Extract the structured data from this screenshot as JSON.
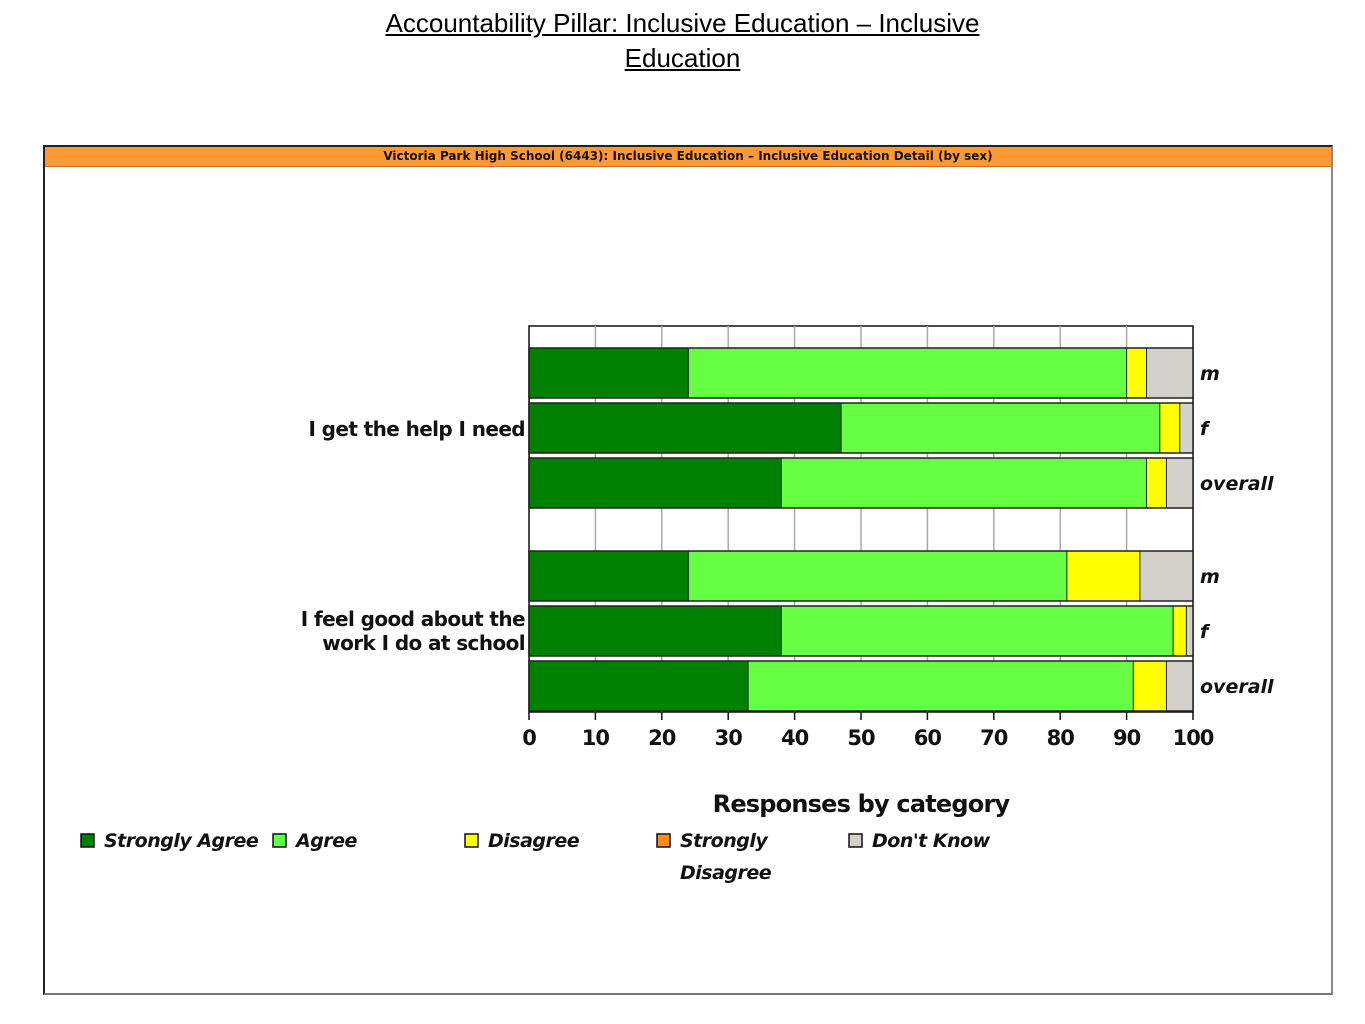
{
  "page": {
    "title_line1": "Accountability Pillar:  Inclusive Education – Inclusive",
    "title_line2": "Education"
  },
  "chart_data": {
    "type": "bar",
    "orientation": "horizontal",
    "stacked": true,
    "title": "Victoria Park High School (6443): Inclusive Education – Inclusive Education Detail (by sex)",
    "xlabel": "Responses by category",
    "xlim": [
      0,
      100
    ],
    "xticks": [
      0,
      10,
      20,
      30,
      40,
      50,
      60,
      70,
      80,
      90,
      100
    ],
    "grid": true,
    "legend_position": "bottom",
    "series": [
      {
        "name": "Strongly Agree",
        "color": "#008000"
      },
      {
        "name": "Agree",
        "color": "#66ff44"
      },
      {
        "name": "Disagree",
        "color": "#ffff00"
      },
      {
        "name": "Strongly Disagree",
        "color": "#ff8c1a"
      },
      {
        "name": "Don't Know",
        "color": "#d4d0cc"
      }
    ],
    "groups": [
      {
        "question": [
          "I get the help I need"
        ],
        "rows": [
          {
            "label": "m",
            "values": [
              24,
              66,
              3,
              0,
              7
            ]
          },
          {
            "label": "f",
            "values": [
              47,
              48,
              3,
              0,
              2
            ]
          },
          {
            "label": "overall",
            "values": [
              38,
              55,
              3,
              0,
              4
            ]
          }
        ]
      },
      {
        "question": [
          "I feel good about the",
          "work I do at school"
        ],
        "rows": [
          {
            "label": "m",
            "values": [
              24,
              57,
              11,
              0,
              8
            ]
          },
          {
            "label": "f",
            "values": [
              38,
              59,
              2,
              0,
              1
            ]
          },
          {
            "label": "overall",
            "values": [
              33,
              58,
              5,
              0,
              4
            ]
          }
        ]
      }
    ],
    "legend_labels": [
      [
        "Strongly Agree"
      ],
      [
        "Agree"
      ],
      [
        "Disagree"
      ],
      [
        "Strongly",
        "Disagree"
      ],
      [
        "Don't Know"
      ]
    ]
  }
}
